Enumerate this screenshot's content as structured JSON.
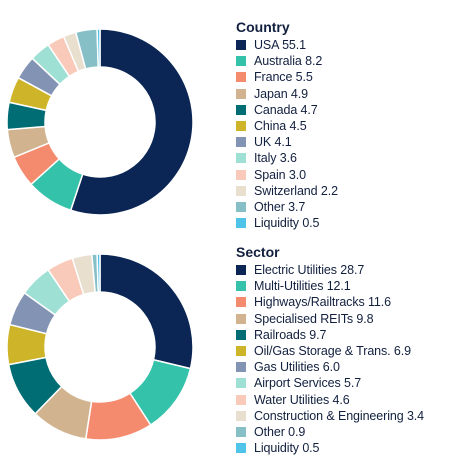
{
  "chart_data": [
    {
      "type": "pie",
      "variant": "donut",
      "title": "Country",
      "categories": [
        "USA",
        "Australia",
        "France",
        "Japan",
        "Canada",
        "China",
        "UK",
        "Italy",
        "Spain",
        "Switzerland",
        "Other",
        "Liquidity"
      ],
      "values": [
        55.1,
        8.2,
        5.5,
        4.9,
        4.7,
        4.5,
        4.1,
        3.6,
        3.0,
        2.2,
        3.7,
        0.5
      ],
      "colors": [
        "#0b2655",
        "#35c2ab",
        "#f58b6e",
        "#d1b48f",
        "#006d74",
        "#cdb428",
        "#8393b3",
        "#9fe0d5",
        "#f9c9ba",
        "#e8dfce",
        "#86bfc6",
        "#4fc3e8"
      ],
      "legend_position": "right"
    },
    {
      "type": "pie",
      "variant": "donut",
      "title": "Sector",
      "categories": [
        "Electric Utilities",
        "Multi-Utilities",
        "Highways/Railtracks",
        "Specialised REITs",
        "Railroads",
        "Oil/Gas Storage & Trans.",
        "Gas Utilities",
        "Airport Services",
        "Water Utilities",
        "Construction & Engineering",
        "Other",
        "Liquidity"
      ],
      "values": [
        28.7,
        12.1,
        11.6,
        9.8,
        9.7,
        6.9,
        6.0,
        5.7,
        4.6,
        3.4,
        0.9,
        0.5
      ],
      "colors": [
        "#0b2655",
        "#35c2ab",
        "#f58b6e",
        "#d1b48f",
        "#006d74",
        "#cdb428",
        "#8393b3",
        "#9fe0d5",
        "#f9c9ba",
        "#e8dfce",
        "#86bfc6",
        "#4fc3e8"
      ],
      "legend_position": "right"
    }
  ]
}
